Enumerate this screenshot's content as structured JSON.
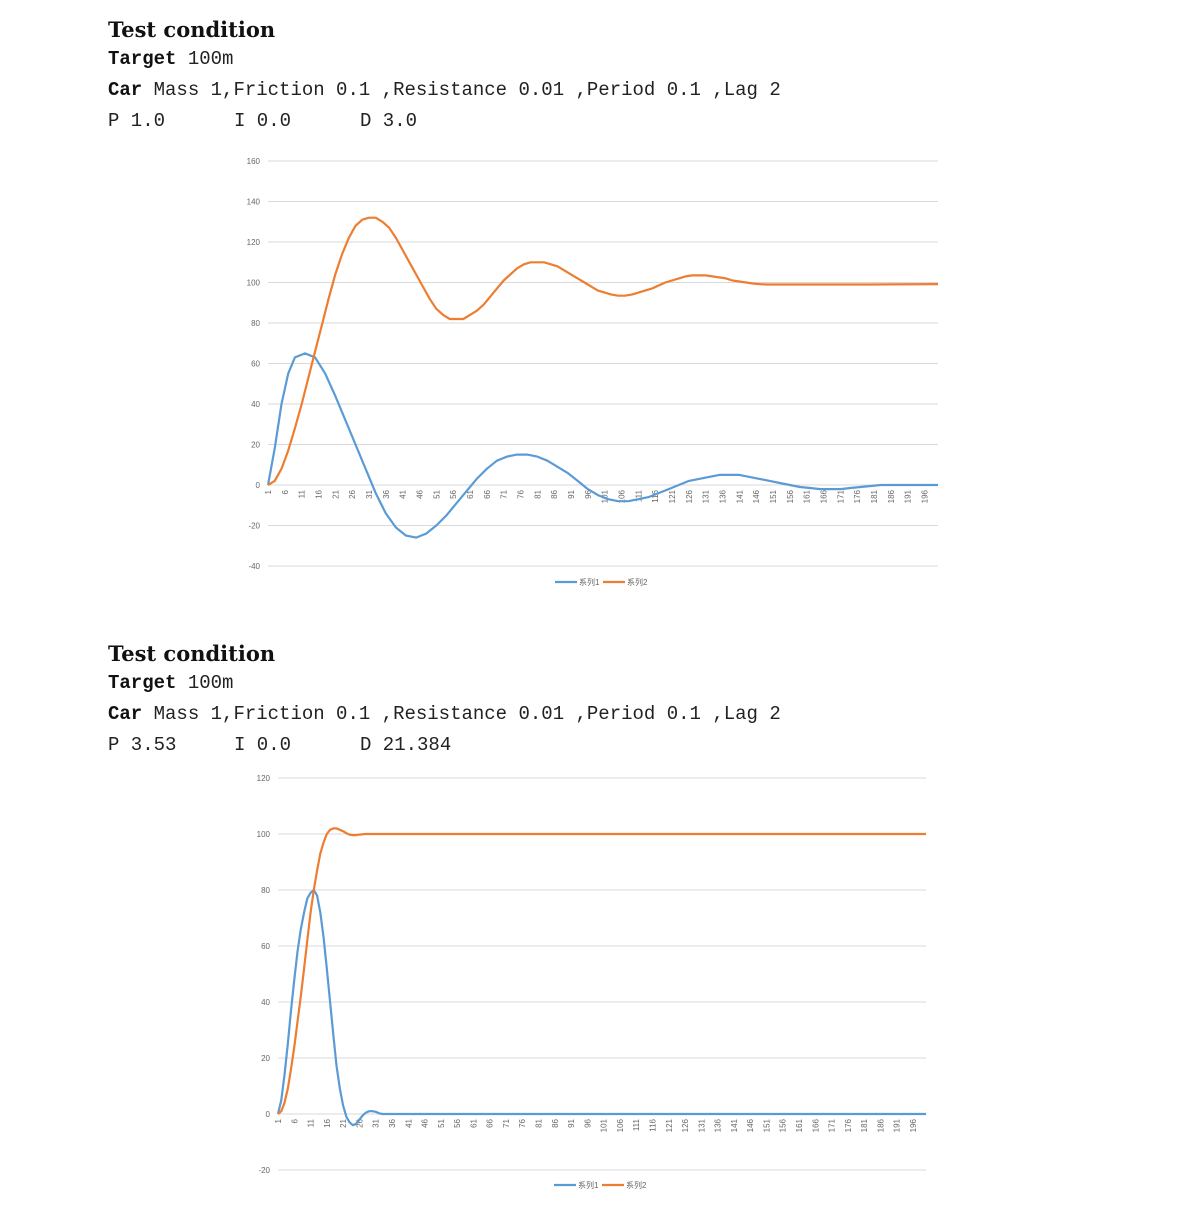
{
  "blocks": [
    {
      "heading": "Test condition",
      "target_key": "Target",
      "target_val": "100m",
      "car_key": "Car",
      "car_val": "Mass 1,Friction 0.1 ,Resistance 0.01 ,Period 0.1 ,Lag 2",
      "p": "P 1.0",
      "i": "I 0.0",
      "d": "D 3.0"
    },
    {
      "heading": "Test condition",
      "target_key": "Target",
      "target_val": "100m",
      "car_key": "Car",
      "car_val": "Mass 1,Friction 0.1 ,Resistance 0.01 ,Period 0.1 ,Lag 2",
      "p": "P 3.53",
      "i": "I 0.0",
      "d": "D 21.384"
    }
  ],
  "chart_data": [
    {
      "type": "line",
      "ylim": [
        -40,
        160
      ],
      "yticks": [
        -40,
        -20,
        0,
        20,
        40,
        60,
        80,
        100,
        120,
        140,
        160
      ],
      "x_range": [
        1,
        200
      ],
      "xticks": [
        "1",
        "6",
        "11",
        "16",
        "21",
        "26",
        "31",
        "36",
        "41",
        "46",
        "51",
        "56",
        "61",
        "66",
        "71",
        "76",
        "81",
        "86",
        "91",
        "96",
        "101",
        "106",
        "111",
        "116",
        "121",
        "126",
        "131",
        "136",
        "141",
        "146",
        "151",
        "156",
        "161",
        "166",
        "171",
        "176",
        "181",
        "186",
        "191",
        "196"
      ],
      "grid": true,
      "legend": "bottom",
      "series": [
        {
          "name": "系列1",
          "color": "#5b9bd5",
          "points": [
            [
              1,
              0
            ],
            [
              3,
              18
            ],
            [
              5,
              40
            ],
            [
              7,
              55
            ],
            [
              9,
              63
            ],
            [
              12,
              65
            ],
            [
              15,
              63
            ],
            [
              18,
              55
            ],
            [
              21,
              44
            ],
            [
              24,
              32
            ],
            [
              27,
              20
            ],
            [
              30,
              8
            ],
            [
              33,
              -4
            ],
            [
              36,
              -14
            ],
            [
              39,
              -21
            ],
            [
              42,
              -25
            ],
            [
              45,
              -26
            ],
            [
              48,
              -24
            ],
            [
              51,
              -20
            ],
            [
              54,
              -15
            ],
            [
              57,
              -9
            ],
            [
              60,
              -3
            ],
            [
              63,
              3
            ],
            [
              66,
              8
            ],
            [
              69,
              12
            ],
            [
              72,
              14
            ],
            [
              75,
              15
            ],
            [
              78,
              15
            ],
            [
              81,
              14
            ],
            [
              84,
              12
            ],
            [
              87,
              9
            ],
            [
              90,
              6
            ],
            [
              93,
              2
            ],
            [
              96,
              -2
            ],
            [
              99,
              -5
            ],
            [
              102,
              -7
            ],
            [
              105,
              -8
            ],
            [
              108,
              -8
            ],
            [
              111,
              -7
            ],
            [
              114,
              -6
            ],
            [
              117,
              -4
            ],
            [
              120,
              -2
            ],
            [
              123,
              0
            ],
            [
              126,
              2
            ],
            [
              129,
              3
            ],
            [
              132,
              4
            ],
            [
              135,
              5
            ],
            [
              138,
              5
            ],
            [
              141,
              5
            ],
            [
              144,
              4
            ],
            [
              147,
              3
            ],
            [
              150,
              2
            ],
            [
              153,
              1
            ],
            [
              156,
              0
            ],
            [
              159,
              -1
            ],
            [
              162,
              -1.5
            ],
            [
              165,
              -2
            ],
            [
              168,
              -2
            ],
            [
              171,
              -2
            ],
            [
              174,
              -1.5
            ],
            [
              177,
              -1
            ],
            [
              180,
              -0.5
            ],
            [
              183,
              0
            ],
            [
              186,
              0
            ],
            [
              189,
              0
            ],
            [
              192,
              0
            ],
            [
              195,
              0
            ],
            [
              200,
              0
            ]
          ]
        },
        {
          "name": "系列2",
          "color": "#ed7d31",
          "points": [
            [
              1,
              0
            ],
            [
              3,
              2
            ],
            [
              5,
              8
            ],
            [
              7,
              17
            ],
            [
              9,
              28
            ],
            [
              11,
              40
            ],
            [
              13,
              53
            ],
            [
              15,
              66
            ],
            [
              17,
              79
            ],
            [
              19,
              92
            ],
            [
              21,
              104
            ],
            [
              23,
              114
            ],
            [
              25,
              122
            ],
            [
              27,
              128
            ],
            [
              29,
              131
            ],
            [
              31,
              132
            ],
            [
              33,
              132
            ],
            [
              35,
              130
            ],
            [
              37,
              127
            ],
            [
              39,
              122
            ],
            [
              41,
              116
            ],
            [
              43,
              110
            ],
            [
              45,
              104
            ],
            [
              47,
              98
            ],
            [
              49,
              92
            ],
            [
              51,
              87
            ],
            [
              53,
              84
            ],
            [
              55,
              82
            ],
            [
              57,
              82
            ],
            [
              59,
              82
            ],
            [
              61,
              84
            ],
            [
              63,
              86
            ],
            [
              65,
              89
            ],
            [
              67,
              93
            ],
            [
              69,
              97
            ],
            [
              71,
              101
            ],
            [
              73,
              104
            ],
            [
              75,
              107
            ],
            [
              77,
              109
            ],
            [
              79,
              110
            ],
            [
              81,
              110
            ],
            [
              83,
              110
            ],
            [
              85,
              109
            ],
            [
              87,
              108
            ],
            [
              89,
              106
            ],
            [
              91,
              104
            ],
            [
              93,
              102
            ],
            [
              95,
              100
            ],
            [
              97,
              98
            ],
            [
              99,
              96
            ],
            [
              101,
              95
            ],
            [
              103,
              94
            ],
            [
              105,
              93.5
            ],
            [
              107,
              93.5
            ],
            [
              109,
              94
            ],
            [
              111,
              95
            ],
            [
              113,
              96
            ],
            [
              115,
              97
            ],
            [
              117,
              98.5
            ],
            [
              119,
              100
            ],
            [
              121,
              101
            ],
            [
              123,
              102
            ],
            [
              125,
              103
            ],
            [
              127,
              103.5
            ],
            [
              129,
              103.5
            ],
            [
              131,
              103.5
            ],
            [
              133,
              103
            ],
            [
              135,
              102.5
            ],
            [
              137,
              102
            ],
            [
              139,
              101
            ],
            [
              141,
              100.5
            ],
            [
              143,
              100
            ],
            [
              145,
              99.5
            ],
            [
              147,
              99.2
            ],
            [
              149,
              99
            ],
            [
              151,
              99
            ],
            [
              155,
              99
            ],
            [
              160,
              99
            ],
            [
              170,
              99
            ],
            [
              180,
              99
            ],
            [
              200,
              99.2
            ]
          ]
        }
      ]
    },
    {
      "type": "line",
      "ylim": [
        -20,
        120
      ],
      "yticks": [
        -20,
        0,
        20,
        40,
        60,
        80,
        100,
        120
      ],
      "x_range": [
        1,
        200
      ],
      "xticks": [
        "1",
        "6",
        "11",
        "16",
        "21",
        "26",
        "31",
        "36",
        "41",
        "46",
        "51",
        "56",
        "61",
        "66",
        "71",
        "76",
        "81",
        "86",
        "91",
        "96",
        "101",
        "106",
        "111",
        "116",
        "121",
        "126",
        "131",
        "136",
        "141",
        "146",
        "151",
        "156",
        "161",
        "166",
        "171",
        "176",
        "181",
        "186",
        "191",
        "196"
      ],
      "grid": true,
      "legend": "bottom",
      "series": [
        {
          "name": "系列1",
          "color": "#5b9bd5",
          "points": [
            [
              1,
              0
            ],
            [
              2,
              5
            ],
            [
              3,
              14
            ],
            [
              4,
              25
            ],
            [
              5,
              37
            ],
            [
              6,
              48
            ],
            [
              7,
              58
            ],
            [
              8,
              66
            ],
            [
              9,
              72
            ],
            [
              10,
              77
            ],
            [
              11,
              79
            ],
            [
              12,
              80
            ],
            [
              13,
              78
            ],
            [
              14,
              72
            ],
            [
              15,
              63
            ],
            [
              16,
              52
            ],
            [
              17,
              40
            ],
            [
              18,
              28
            ],
            [
              19,
              17
            ],
            [
              20,
              9
            ],
            [
              21,
              3
            ],
            [
              22,
              -1
            ],
            [
              23,
              -3
            ],
            [
              24,
              -4
            ],
            [
              25,
              -3.5
            ],
            [
              26,
              -2
            ],
            [
              27,
              -0.5
            ],
            [
              28,
              0.5
            ],
            [
              29,
              1
            ],
            [
              30,
              1
            ],
            [
              31,
              0.8
            ],
            [
              32,
              0.3
            ],
            [
              33,
              0
            ],
            [
              35,
              0
            ],
            [
              40,
              0
            ],
            [
              60,
              0
            ],
            [
              100,
              0
            ],
            [
              150,
              0
            ],
            [
              200,
              0
            ]
          ]
        },
        {
          "name": "系列2",
          "color": "#ed7d31",
          "points": [
            [
              1,
              0
            ],
            [
              2,
              1
            ],
            [
              3,
              4
            ],
            [
              4,
              9
            ],
            [
              5,
              16
            ],
            [
              6,
              24
            ],
            [
              7,
              33
            ],
            [
              8,
              42
            ],
            [
              9,
              52
            ],
            [
              10,
              62
            ],
            [
              11,
              72
            ],
            [
              12,
              80
            ],
            [
              13,
              87
            ],
            [
              14,
              93
            ],
            [
              15,
              97
            ],
            [
              16,
              100
            ],
            [
              17,
              101.5
            ],
            [
              18,
              102
            ],
            [
              19,
              102
            ],
            [
              20,
              101.5
            ],
            [
              21,
              101
            ],
            [
              22,
              100.3
            ],
            [
              23,
              99.8
            ],
            [
              24,
              99.6
            ],
            [
              25,
              99.6
            ],
            [
              26,
              99.8
            ],
            [
              28,
              100
            ],
            [
              35,
              100
            ],
            [
              60,
              100
            ],
            [
              100,
              100
            ],
            [
              150,
              100
            ],
            [
              200,
              100
            ]
          ]
        }
      ]
    }
  ]
}
